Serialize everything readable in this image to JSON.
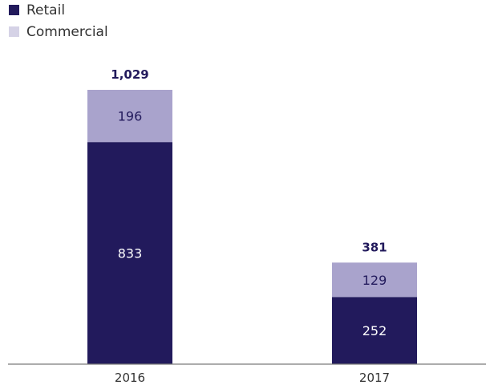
{
  "chart_data": {
    "type": "bar",
    "stacked": true,
    "categories": [
      "2016",
      "2017"
    ],
    "series": [
      {
        "name": "Retail",
        "values": [
          833,
          252
        ],
        "color": "#221a5c",
        "label_color": "#ffffff"
      },
      {
        "name": "Commercial",
        "values": [
          196,
          129
        ],
        "color": "#a9a3cc",
        "label_color": "#221a5c"
      }
    ],
    "totals": [
      "1,029",
      "381"
    ],
    "total_color": "#221a5c",
    "title": "",
    "xlabel": "",
    "ylabel": "",
    "ylim": [
      0,
      1029
    ],
    "grid": false,
    "legend": {
      "position": "top-left",
      "swatch_colors": [
        "#221a5c",
        "#d5d2e6"
      ]
    }
  }
}
